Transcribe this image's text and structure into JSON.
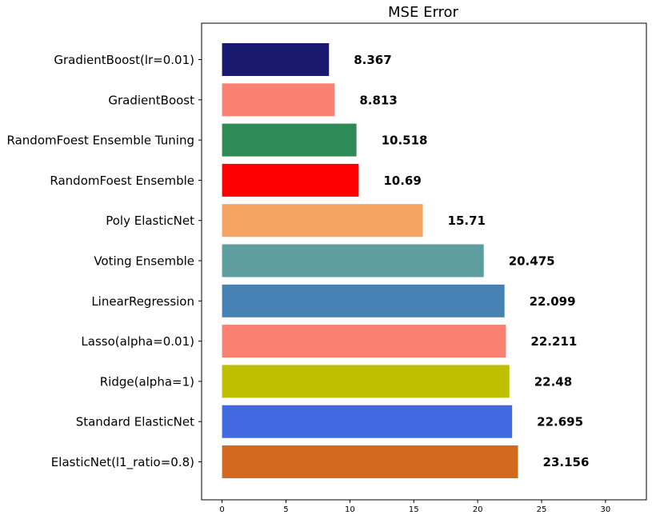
{
  "chart_data": {
    "type": "bar",
    "orientation": "horizontal",
    "title": "MSE Error",
    "xlabel": "",
    "ylabel": "",
    "xlim": [
      -1.6,
      33.2
    ],
    "xticks": [
      0,
      5,
      10,
      15,
      20,
      25,
      30
    ],
    "grid": false,
    "categories": [
      "GradientBoost(lr=0.01)",
      "GradientBoost",
      "RandomFoest Ensemble Tuning",
      "RandomFoest Ensemble",
      "Poly ElasticNet",
      "Voting Ensemble",
      "LinearRegression",
      "Lasso(alpha=0.01)",
      "Ridge(alpha=1)",
      "Standard ElasticNet",
      "ElasticNet(l1_ratio=0.8)"
    ],
    "values": [
      8.367,
      8.813,
      10.518,
      10.69,
      15.71,
      20.475,
      22.099,
      22.211,
      22.48,
      22.695,
      23.156
    ],
    "value_labels": [
      "8.367",
      "8.813",
      "10.518",
      "10.69",
      "15.71",
      "20.475",
      "22.099",
      "22.211",
      "22.48",
      "22.695",
      "23.156"
    ],
    "colors": [
      "#191970",
      "#fa8072",
      "#2e8b57",
      "#ff0000",
      "#f4a460",
      "#5f9ea0",
      "#4682b4",
      "#fa8072",
      "#bfbf00",
      "#4169e1",
      "#d2691e"
    ]
  }
}
